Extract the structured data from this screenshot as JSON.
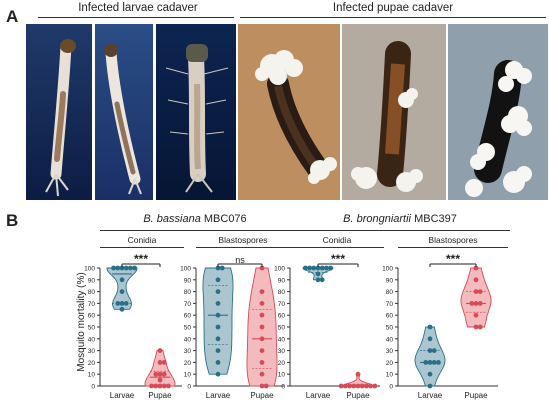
{
  "panel_a": {
    "label": "A",
    "groups": [
      {
        "title": "Infected larvae cadaver"
      },
      {
        "title": "Infected pupae cadaver"
      }
    ]
  },
  "panel_b": {
    "label": "B",
    "species": [
      {
        "name_italic": "B. bassiana",
        "strain": "MBC076"
      },
      {
        "name_italic": "B. brongniartii",
        "strain": "MBC397"
      }
    ],
    "conditions": [
      "Conidia",
      "Blastospores",
      "Conidia",
      "Blastospores"
    ],
    "significance": [
      "***",
      "ns",
      "***",
      "***"
    ]
  },
  "colors": {
    "larvae": "#2a6f88",
    "larvae_fill": "#8fb3c2",
    "pupae": "#d84a55",
    "pupae_fill": "#efa4a8"
  },
  "chart_data": [
    {
      "type": "scatter",
      "title": "Conidia",
      "ylabel": "Mosquito mortality (%)",
      "categories": [
        "Larvae",
        "Pupae"
      ],
      "ylim": [
        0,
        100
      ],
      "yticks": [
        0,
        10,
        20,
        30,
        40,
        50,
        60,
        70,
        80,
        90,
        100
      ],
      "significance": "***",
      "series": [
        {
          "name": "Larvae",
          "values": [
            100,
            100,
            100,
            100,
            100,
            90,
            80,
            70,
            70,
            70,
            65,
            100
          ]
        },
        {
          "name": "Pupae",
          "values": [
            30,
            20,
            20,
            10,
            10,
            10,
            0,
            0,
            0,
            0,
            0,
            5
          ]
        }
      ]
    },
    {
      "type": "scatter",
      "title": "Blastospores",
      "categories": [
        "Larvae",
        "Pupae"
      ],
      "ylim": [
        0,
        100
      ],
      "yticks": [
        0,
        10,
        20,
        30,
        40,
        50,
        60,
        70,
        80,
        90,
        100
      ],
      "significance": "ns",
      "series": [
        {
          "name": "Larvae",
          "values": [
            100,
            100,
            90,
            80,
            70,
            60,
            50,
            40,
            30,
            20,
            10
          ]
        },
        {
          "name": "Pupae",
          "values": [
            100,
            80,
            70,
            60,
            50,
            40,
            30,
            20,
            10,
            0,
            0
          ]
        }
      ]
    },
    {
      "type": "scatter",
      "title": "Conidia",
      "categories": [
        "Larvae",
        "Pupae"
      ],
      "ylim": [
        0,
        100
      ],
      "yticks": [
        0,
        10,
        20,
        30,
        40,
        50,
        60,
        70,
        80,
        90,
        100
      ],
      "significance": "***",
      "series": [
        {
          "name": "Larvae",
          "values": [
            100,
            100,
            100,
            100,
            100,
            100,
            100,
            95,
            90,
            90
          ]
        },
        {
          "name": "Pupae",
          "values": [
            10,
            0,
            0,
            0,
            0,
            0,
            0,
            0,
            0,
            0
          ]
        }
      ]
    },
    {
      "type": "scatter",
      "title": "Blastospores",
      "categories": [
        "Larvae",
        "Pupae"
      ],
      "ylim": [
        0,
        100
      ],
      "yticks": [
        0,
        10,
        20,
        30,
        40,
        50,
        60,
        70,
        80,
        90,
        100
      ],
      "significance": "***",
      "series": [
        {
          "name": "Larvae",
          "values": [
            50,
            40,
            30,
            30,
            20,
            20,
            20,
            20,
            10,
            0
          ]
        },
        {
          "name": "Pupae",
          "values": [
            100,
            90,
            80,
            80,
            70,
            70,
            70,
            60,
            50,
            50
          ]
        }
      ]
    }
  ]
}
